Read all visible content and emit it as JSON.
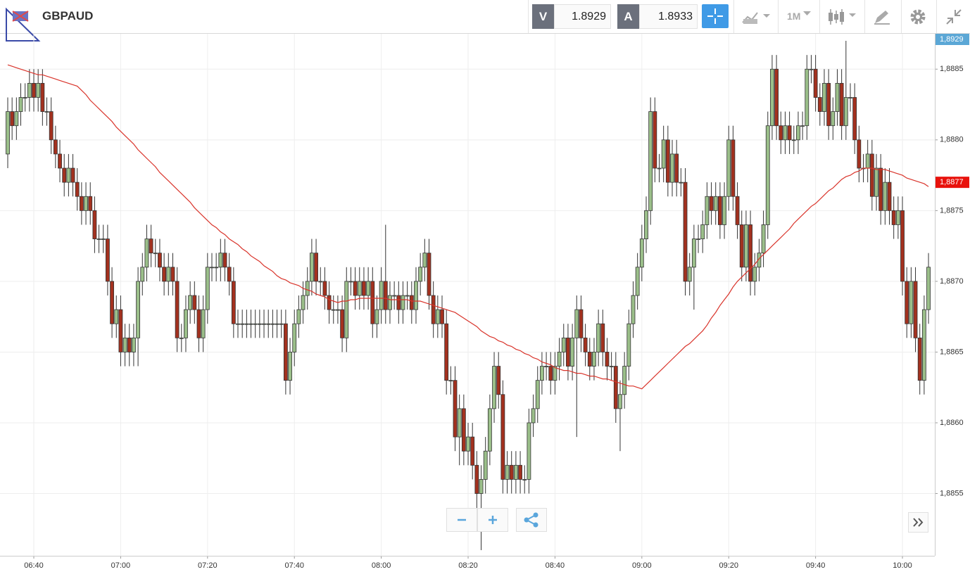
{
  "toolbar": {
    "symbol": "GBPAUD",
    "bid_label": "V",
    "bid": "1.8929",
    "ask_label": "A",
    "ask": "1.8933",
    "timeframe": "1M"
  },
  "chart_data": {
    "type": "candlestick",
    "up_color": "#9bbf8a",
    "down_color": "#a3311f",
    "grid": true,
    "ylim": [
      1.88506,
      1.88875
    ],
    "yticks": [
      {
        "value": 1.8855,
        "label": "1,8855"
      },
      {
        "value": 1.886,
        "label": "1,8860"
      },
      {
        "value": 1.8865,
        "label": "1,8865"
      },
      {
        "value": 1.887,
        "label": "1,8870"
      },
      {
        "value": 1.8875,
        "label": "1,8875"
      },
      {
        "value": 1.888,
        "label": "1,8880"
      },
      {
        "value": 1.8885,
        "label": "1,8885"
      }
    ],
    "price_tags": [
      {
        "value": 1.8929,
        "label": "1,8929",
        "color": "#5ba7d6"
      },
      {
        "value": 1.8877,
        "label": "1,8877",
        "color": "#e8120c"
      }
    ],
    "categories": [
      null,
      null,
      null,
      null,
      null,
      null,
      "06:40",
      null,
      null,
      null,
      null,
      null,
      null,
      null,
      null,
      null,
      null,
      null,
      null,
      null,
      null,
      null,
      null,
      null,
      null,
      null,
      "07:00",
      null,
      null,
      null,
      null,
      null,
      null,
      null,
      null,
      null,
      null,
      null,
      null,
      null,
      null,
      null,
      null,
      null,
      null,
      null,
      "07:20",
      null,
      null,
      null,
      null,
      null,
      null,
      null,
      null,
      null,
      null,
      null,
      null,
      null,
      null,
      null,
      null,
      null,
      null,
      null,
      "07:40",
      null,
      null,
      null,
      null,
      null,
      null,
      null,
      null,
      null,
      null,
      null,
      null,
      null,
      null,
      null,
      null,
      null,
      null,
      null,
      "08:00",
      null,
      null,
      null,
      null,
      null,
      null,
      null,
      null,
      null,
      null,
      null,
      null,
      null,
      null,
      null,
      null,
      null,
      null,
      null,
      "08:20",
      null,
      null,
      null,
      null,
      null,
      null,
      null,
      null,
      null,
      null,
      null,
      null,
      null,
      null,
      null,
      null,
      null,
      null,
      null,
      "08:40",
      null,
      null,
      null,
      null,
      null,
      null,
      null,
      null,
      null,
      null,
      null,
      null,
      null,
      null,
      null,
      null,
      null,
      null,
      null,
      "09:00",
      null,
      null,
      null,
      null,
      null,
      null,
      null,
      null,
      null,
      null,
      null,
      null,
      null,
      null,
      null,
      null,
      null,
      null,
      null,
      "09:20",
      null,
      null,
      null,
      null,
      null,
      null,
      null,
      null,
      null,
      null,
      null,
      null,
      null,
      null,
      null,
      null,
      null,
      null,
      null,
      "09:40",
      null,
      null,
      null,
      null,
      null,
      null,
      null,
      null,
      null,
      null,
      null,
      null,
      null,
      null,
      null,
      null,
      null,
      null,
      null,
      "10:00",
      null,
      null,
      null,
      null,
      null,
      null
    ],
    "open": [
      1.8879,
      1.8882,
      1.8881,
      1.8882,
      1.8883,
      1.8883,
      1.8884,
      1.8883,
      1.8884,
      1.8882,
      1.8882,
      1.888,
      1.8879,
      1.8878,
      1.8877,
      1.8878,
      1.8877,
      1.8876,
      1.8875,
      1.8876,
      1.8875,
      1.8873,
      1.8873,
      1.8873,
      1.887,
      1.8867,
      1.8868,
      1.8865,
      1.8866,
      1.8865,
      1.8866,
      1.887,
      1.8871,
      1.8873,
      1.8872,
      1.8872,
      1.8871,
      1.887,
      1.8871,
      1.887,
      1.8866,
      1.8866,
      1.8868,
      1.8869,
      1.8868,
      1.8866,
      1.8868,
      1.8871,
      1.8871,
      1.8871,
      1.8872,
      1.8871,
      1.887,
      1.8867,
      1.8867,
      1.8867,
      1.8867,
      1.8867,
      1.8867,
      1.8867,
      1.8867,
      1.8867,
      1.8867,
      1.8867,
      1.8867,
      1.8863,
      1.8865,
      1.8867,
      1.8868,
      1.8869,
      1.887,
      1.8872,
      1.887,
      1.887,
      1.8869,
      1.8868,
      1.8868,
      1.8868,
      1.8866,
      1.887,
      1.887,
      1.8869,
      1.887,
      1.8869,
      1.887,
      1.8867,
      1.8868,
      1.887,
      1.8868,
      1.8869,
      1.8869,
      1.8868,
      1.8869,
      1.8869,
      1.8868,
      1.887,
      1.8871,
      1.8872,
      1.8869,
      1.8867,
      1.8868,
      1.8867,
      1.8863,
      1.8863,
      1.8859,
      1.8861,
      1.8858,
      1.8859,
      1.8857,
      1.8855,
      1.8856,
      1.8858,
      1.8861,
      1.8864,
      1.8862,
      1.8856,
      1.8857,
      1.8856,
      1.8857,
      1.8856,
      1.8856,
      1.886,
      1.8861,
      1.8863,
      1.8864,
      1.8864,
      1.8863,
      1.8864,
      1.8865,
      1.8866,
      1.8864,
      1.8866,
      1.8868,
      1.8866,
      1.8865,
      1.8864,
      1.8865,
      1.8867,
      1.8865,
      1.8864,
      1.8864,
      1.8861,
      1.8862,
      1.8864,
      1.8867,
      1.8869,
      1.8871,
      1.8873,
      1.8875,
      1.8882,
      1.8878,
      1.8878,
      1.888,
      1.8877,
      1.8879,
      1.8877,
      1.8877,
      1.887,
      1.8871,
      1.8873,
      1.8873,
      1.8874,
      1.8876,
      1.8875,
      1.8876,
      1.8874,
      1.8876,
      1.888,
      1.8876,
      1.8874,
      1.8871,
      1.8874,
      1.887,
      1.8871,
      1.8872,
      1.8874,
      1.8881,
      1.8885,
      1.8881,
      1.888,
      1.8881,
      1.888,
      1.888,
      1.8881,
      1.8881,
      1.8885,
      1.8885,
      1.8883,
      1.8882,
      1.8884,
      1.8881,
      1.8882,
      1.8884,
      1.8881,
      1.8883,
      1.8883,
      1.888,
      1.8878,
      1.8878,
      1.8879,
      1.8876,
      1.8878,
      1.8875,
      1.8877,
      1.8875,
      1.8874,
      1.8875,
      1.887,
      1.8867,
      1.887,
      1.8866,
      1.8863,
      1.8868
    ],
    "high": [
      1.8883,
      1.8883,
      1.8883,
      1.8884,
      1.8884,
      1.8885,
      1.8885,
      1.8885,
      1.8885,
      1.8883,
      1.8883,
      1.8881,
      1.888,
      1.8879,
      1.8879,
      1.8879,
      1.8878,
      1.8877,
      1.8877,
      1.8877,
      1.8876,
      1.8874,
      1.8874,
      1.8874,
      1.8871,
      1.8869,
      1.8869,
      1.8867,
      1.8867,
      1.8867,
      1.8871,
      1.8872,
      1.8874,
      1.8874,
      1.8873,
      1.8873,
      1.8872,
      1.8872,
      1.8872,
      1.8871,
      1.8867,
      1.8869,
      1.887,
      1.887,
      1.8869,
      1.8869,
      1.8872,
      1.8872,
      1.8872,
      1.8873,
      1.8873,
      1.8872,
      1.8871,
      1.8868,
      1.8868,
      1.8868,
      1.8868,
      1.8868,
      1.8868,
      1.8868,
      1.8868,
      1.8868,
      1.8868,
      1.8868,
      1.8868,
      1.8866,
      1.8868,
      1.8869,
      1.887,
      1.8871,
      1.8873,
      1.8873,
      1.8871,
      1.8871,
      1.887,
      1.8869,
      1.8869,
      1.8869,
      1.8871,
      1.8871,
      1.8871,
      1.8871,
      1.8871,
      1.8871,
      1.8871,
      1.8869,
      1.8871,
      1.8874,
      1.887,
      1.887,
      1.887,
      1.887,
      1.887,
      1.887,
      1.8871,
      1.8872,
      1.8873,
      1.8873,
      1.887,
      1.8869,
      1.8869,
      1.8868,
      1.8864,
      1.8864,
      1.8862,
      1.8862,
      1.886,
      1.886,
      1.8858,
      1.8857,
      1.8859,
      1.8862,
      1.8865,
      1.8865,
      1.8863,
      1.8858,
      1.8858,
      1.8858,
      1.8858,
      1.8857,
      1.8861,
      1.8862,
      1.8864,
      1.8865,
      1.8865,
      1.8865,
      1.8865,
      1.8866,
      1.8867,
      1.8867,
      1.8867,
      1.8869,
      1.8869,
      1.8867,
      1.8866,
      1.8866,
      1.8868,
      1.8868,
      1.8866,
      1.8865,
      1.8865,
      1.8863,
      1.8865,
      1.8868,
      1.887,
      1.8872,
      1.8874,
      1.8876,
      1.8883,
      1.8883,
      1.8879,
      1.8881,
      1.8881,
      1.888,
      1.888,
      1.8878,
      1.8878,
      1.8872,
      1.8874,
      1.8874,
      1.8875,
      1.8877,
      1.8877,
      1.8877,
      1.8877,
      1.8877,
      1.8881,
      1.8881,
      1.8877,
      1.8875,
      1.8875,
      1.8875,
      1.8872,
      1.8873,
      1.8875,
      1.8882,
      1.8886,
      1.8886,
      1.8882,
      1.8882,
      1.8882,
      1.8881,
      1.8882,
      1.8882,
      1.8886,
      1.8886,
      1.8886,
      1.8884,
      1.8885,
      1.8885,
      1.8883,
      1.8885,
      1.8885,
      1.8887,
      1.8884,
      1.8884,
      1.8881,
      1.8879,
      1.888,
      1.888,
      1.8879,
      1.8879,
      1.8878,
      1.8878,
      1.8876,
      1.8876,
      1.8876,
      1.8871,
      1.8871,
      1.8871,
      1.8867,
      1.8869,
      1.8872
    ],
    "low": [
      1.8878,
      1.888,
      1.888,
      1.8881,
      1.8882,
      1.8882,
      1.8882,
      1.8882,
      1.8881,
      1.8881,
      1.8879,
      1.8878,
      1.8877,
      1.8876,
      1.8876,
      1.8876,
      1.8875,
      1.8874,
      1.8874,
      1.8874,
      1.8872,
      1.8872,
      1.8872,
      1.8869,
      1.8866,
      1.8866,
      1.8864,
      1.8864,
      1.8864,
      1.8864,
      1.8864,
      1.8869,
      1.887,
      1.8871,
      1.8871,
      1.887,
      1.8869,
      1.8869,
      1.8869,
      1.8865,
      1.8865,
      1.8865,
      1.8867,
      1.8867,
      1.8865,
      1.8865,
      1.8867,
      1.887,
      1.887,
      1.887,
      1.887,
      1.8869,
      1.8866,
      1.8866,
      1.8866,
      1.8866,
      1.8866,
      1.8866,
      1.8866,
      1.8866,
      1.8866,
      1.8866,
      1.8866,
      1.8866,
      1.8862,
      1.8862,
      1.8864,
      1.8866,
      1.8867,
      1.8868,
      1.8869,
      1.8869,
      1.8869,
      1.8868,
      1.8867,
      1.8867,
      1.8867,
      1.8865,
      1.8865,
      1.8869,
      1.8868,
      1.8868,
      1.8868,
      1.8868,
      1.8866,
      1.8866,
      1.8867,
      1.8867,
      1.8867,
      1.8868,
      1.8867,
      1.8867,
      1.8868,
      1.8867,
      1.8867,
      1.8869,
      1.887,
      1.8868,
      1.8866,
      1.8866,
      1.8866,
      1.8862,
      1.8862,
      1.8858,
      1.8857,
      1.8857,
      1.8857,
      1.8856,
      1.8853,
      1.8851,
      1.8855,
      1.8857,
      1.886,
      1.8861,
      1.8855,
      1.8855,
      1.8855,
      1.8855,
      1.8855,
      1.8855,
      1.8855,
      1.8859,
      1.886,
      1.8862,
      1.8863,
      1.8862,
      1.8862,
      1.8863,
      1.8864,
      1.8863,
      1.8863,
      1.8859,
      1.8865,
      1.8864,
      1.8863,
      1.8863,
      1.8864,
      1.8864,
      1.8863,
      1.8863,
      1.886,
      1.8858,
      1.8861,
      1.8863,
      1.8866,
      1.8868,
      1.887,
      1.8872,
      1.8874,
      1.8877,
      1.8877,
      1.8877,
      1.8876,
      1.8876,
      1.8876,
      1.8876,
      1.8869,
      1.8869,
      1.8868,
      1.8872,
      1.8872,
      1.8873,
      1.8874,
      1.8874,
      1.8873,
      1.8873,
      1.8875,
      1.8875,
      1.8873,
      1.887,
      1.887,
      1.8869,
      1.8869,
      1.887,
      1.8871,
      1.8873,
      1.888,
      1.888,
      1.8879,
      1.8879,
      1.8879,
      1.8879,
      1.8879,
      1.888,
      1.888,
      1.8884,
      1.8882,
      1.8881,
      1.8881,
      1.888,
      1.888,
      1.8881,
      1.888,
      1.888,
      1.8882,
      1.8879,
      1.8877,
      1.8877,
      1.8877,
      1.8875,
      1.8875,
      1.8874,
      1.8874,
      1.8874,
      1.8873,
      1.8873,
      1.8869,
      1.8866,
      1.8866,
      1.8865,
      1.8862,
      1.8862,
      1.8867
    ],
    "close": [
      1.8882,
      1.8881,
      1.8882,
      1.8883,
      1.8883,
      1.8884,
      1.8883,
      1.8884,
      1.8882,
      1.8882,
      1.888,
      1.8879,
      1.8878,
      1.8877,
      1.8878,
      1.8877,
      1.8876,
      1.8875,
      1.8876,
      1.8875,
      1.8873,
      1.8873,
      1.8873,
      1.887,
      1.8867,
      1.8868,
      1.8865,
      1.8866,
      1.8865,
      1.8866,
      1.887,
      1.8871,
      1.8873,
      1.8872,
      1.8872,
      1.8871,
      1.887,
      1.8871,
      1.887,
      1.8866,
      1.8866,
      1.8868,
      1.8869,
      1.8868,
      1.8866,
      1.8868,
      1.8871,
      1.8871,
      1.8871,
      1.8872,
      1.8871,
      1.887,
      1.8867,
      1.8867,
      1.8867,
      1.8867,
      1.8867,
      1.8867,
      1.8867,
      1.8867,
      1.8867,
      1.8867,
      1.8867,
      1.8867,
      1.8863,
      1.8865,
      1.8867,
      1.8868,
      1.8869,
      1.887,
      1.8872,
      1.887,
      1.887,
      1.8869,
      1.8868,
      1.8868,
      1.8868,
      1.8866,
      1.887,
      1.887,
      1.8869,
      1.887,
      1.8869,
      1.887,
      1.8867,
      1.8868,
      1.887,
      1.8868,
      1.8869,
      1.8869,
      1.8868,
      1.8869,
      1.8869,
      1.8868,
      1.887,
      1.8871,
      1.8872,
      1.8869,
      1.8867,
      1.8868,
      1.8867,
      1.8863,
      1.8863,
      1.8859,
      1.8861,
      1.8858,
      1.8859,
      1.8857,
      1.8855,
      1.8856,
      1.8858,
      1.8861,
      1.8864,
      1.8862,
      1.8856,
      1.8857,
      1.8856,
      1.8857,
      1.8856,
      1.8856,
      1.886,
      1.8861,
      1.8863,
      1.8864,
      1.8864,
      1.8863,
      1.8864,
      1.8865,
      1.8866,
      1.8864,
      1.8866,
      1.8868,
      1.8866,
      1.8865,
      1.8864,
      1.8865,
      1.8867,
      1.8865,
      1.8864,
      1.8864,
      1.8861,
      1.8862,
      1.8864,
      1.8867,
      1.8869,
      1.8871,
      1.8873,
      1.8875,
      1.8882,
      1.8878,
      1.8878,
      1.888,
      1.8877,
      1.8879,
      1.8877,
      1.8877,
      1.887,
      1.8871,
      1.8873,
      1.8873,
      1.8874,
      1.8876,
      1.8875,
      1.8876,
      1.8874,
      1.8876,
      1.888,
      1.8876,
      1.8874,
      1.8871,
      1.8874,
      1.887,
      1.8871,
      1.8872,
      1.8874,
      1.8881,
      1.8885,
      1.8881,
      1.888,
      1.8881,
      1.888,
      1.888,
      1.8881,
      1.8881,
      1.8885,
      1.8885,
      1.8883,
      1.8882,
      1.8884,
      1.8881,
      1.8882,
      1.8884,
      1.8881,
      1.8883,
      1.8883,
      1.888,
      1.8878,
      1.8878,
      1.8879,
      1.8876,
      1.8878,
      1.8875,
      1.8877,
      1.8875,
      1.8874,
      1.8875,
      1.887,
      1.8867,
      1.887,
      1.8866,
      1.8863,
      1.8868,
      1.8871
    ],
    "ma": {
      "color": "#d9342b",
      "values": [
        1.88853,
        1.88852,
        1.88851,
        1.8885,
        1.88849,
        1.88848,
        1.88847,
        1.88846,
        1.88846,
        1.88845,
        1.88844,
        1.88843,
        1.88842,
        1.88841,
        1.8884,
        1.88839,
        1.88838,
        1.88835,
        1.88832,
        1.88828,
        1.88825,
        1.88822,
        1.88819,
        1.88816,
        1.88813,
        1.88809,
        1.88806,
        1.88803,
        1.888,
        1.88797,
        1.88793,
        1.8879,
        1.88787,
        1.88784,
        1.88781,
        1.88777,
        1.88774,
        1.88771,
        1.88768,
        1.88765,
        1.88762,
        1.88759,
        1.88756,
        1.88752,
        1.88749,
        1.88746,
        1.88743,
        1.8874,
        1.88738,
        1.88735,
        1.88733,
        1.8873,
        1.88728,
        1.88726,
        1.88723,
        1.88721,
        1.88718,
        1.88716,
        1.88714,
        1.88711,
        1.88709,
        1.88707,
        1.88704,
        1.88702,
        1.88701,
        1.88699,
        1.88698,
        1.88697,
        1.88695,
        1.88694,
        1.88693,
        1.88691,
        1.8869,
        1.88689,
        1.88687,
        1.88686,
        1.88685,
        1.88686,
        1.88686,
        1.88687,
        1.88687,
        1.88688,
        1.88688,
        1.88688,
        1.88688,
        1.88688,
        1.88688,
        1.88688,
        1.88687,
        1.88687,
        1.88687,
        1.88687,
        1.88687,
        1.88686,
        1.88686,
        1.88686,
        1.88685,
        1.88684,
        1.88683,
        1.88682,
        1.88681,
        1.8868,
        1.88679,
        1.88678,
        1.88676,
        1.88674,
        1.88672,
        1.8867,
        1.88668,
        1.88665,
        1.88663,
        1.88661,
        1.8866,
        1.88658,
        1.88657,
        1.88655,
        1.88654,
        1.88652,
        1.88651,
        1.88649,
        1.88648,
        1.88646,
        1.88645,
        1.88643,
        1.88642,
        1.88641,
        1.88639,
        1.88638,
        1.88637,
        1.88637,
        1.88636,
        1.88635,
        1.88635,
        1.88634,
        1.88633,
        1.88633,
        1.88632,
        1.88631,
        1.88631,
        1.8863,
        1.88629,
        1.88628,
        1.88627,
        1.88626,
        1.88626,
        1.88625,
        1.88624,
        1.88627,
        1.8863,
        1.88633,
        1.88636,
        1.88639,
        1.88642,
        1.88645,
        1.88648,
        1.88651,
        1.88654,
        1.88656,
        1.88659,
        1.88662,
        1.88665,
        1.88669,
        1.88674,
        1.88678,
        1.88683,
        1.88687,
        1.88691,
        1.88696,
        1.887,
        1.88703,
        1.88706,
        1.88709,
        1.88712,
        1.88716,
        1.88719,
        1.88722,
        1.88725,
        1.88728,
        1.88731,
        1.88734,
        1.88737,
        1.88741,
        1.88744,
        1.88747,
        1.8875,
        1.88753,
        1.88755,
        1.88758,
        1.88761,
        1.88764,
        1.88766,
        1.88769,
        1.88772,
        1.88774,
        1.88775,
        1.88777,
        1.88778,
        1.8878,
        1.8878,
        1.8878,
        1.88779,
        1.88779,
        1.88779,
        1.88778,
        1.88777,
        1.88776,
        1.88775,
        1.88773,
        1.88772,
        1.88771,
        1.8877,
        1.88769,
        1.88767
      ]
    }
  }
}
